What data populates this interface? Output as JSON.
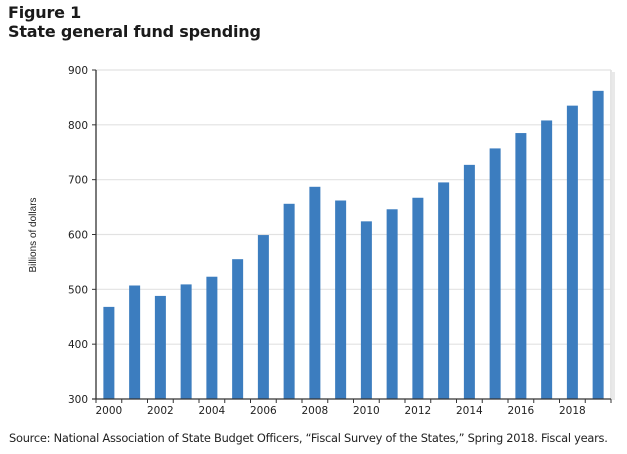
{
  "figure": {
    "label": "Figure 1",
    "title": "State general fund spending",
    "source": "Source: National Association of State Budget Officers, “Fiscal Survey of the States,” Spring 2018. Fiscal years."
  },
  "colors": {
    "bar": "#3c7dbf",
    "gridline": "#e2e2e2",
    "axis": "#333333",
    "frame": "#d4d4d4"
  },
  "chart_data": {
    "type": "bar",
    "title": "State general fund spending",
    "xlabel": "",
    "ylabel": "Billions of dollars",
    "ylim": [
      300,
      900
    ],
    "yticks": [
      300,
      400,
      500,
      600,
      700,
      800,
      900
    ],
    "grid": true,
    "legend": "none",
    "categories": [
      "2000",
      "2001",
      "2002",
      "2003",
      "2004",
      "2005",
      "2006",
      "2007",
      "2008",
      "2009",
      "2010",
      "2011",
      "2012",
      "2013",
      "2014",
      "2015",
      "2016",
      "2017",
      "2018",
      "2019"
    ],
    "xtick_labels": [
      "2000",
      "",
      "2002",
      "",
      "2004",
      "",
      "2006",
      "",
      "2008",
      "",
      "2010",
      "",
      "2012",
      "",
      "2014",
      "",
      "2016",
      "",
      "2018",
      ""
    ],
    "series": [
      {
        "name": "State general fund spending",
        "values": [
          468,
          507,
          488,
          509,
          523,
          555,
          599,
          656,
          687,
          662,
          624,
          646,
          667,
          695,
          727,
          757,
          785,
          808,
          835,
          862
        ]
      }
    ]
  }
}
